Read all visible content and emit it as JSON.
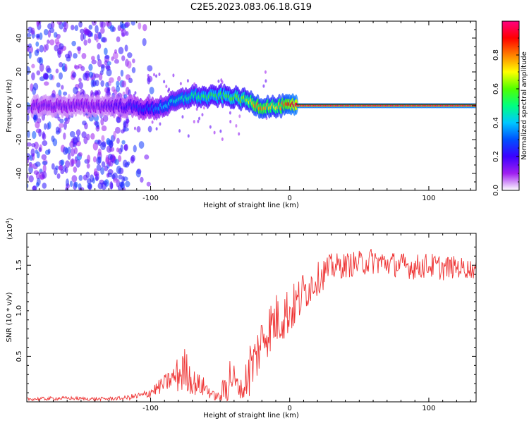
{
  "chart_data": [
    {
      "type": "heatmap",
      "title": "C2E5.2023.083.06.18.G19",
      "xlabel": "Height of straight line (km)",
      "ylabel": "Frequency (Hz)",
      "xlim": [
        -189,
        134
      ],
      "ylim": [
        -50,
        50
      ],
      "xticks": [
        -100,
        0,
        100
      ],
      "yticks": [
        -40,
        -20,
        0,
        20,
        40
      ],
      "colorbar": {
        "label": "Normalized spectral amplitude",
        "range": [
          0,
          1
        ],
        "ticks": [
          "0.0",
          "0.2",
          "0.4",
          "0.6",
          "0.8"
        ],
        "tick_values": [
          0.0,
          0.2,
          0.4,
          0.6,
          0.8
        ],
        "colors": [
          "#ffffff",
          "#a020f0",
          "#3c00ff",
          "#0050ff",
          "#00c8ff",
          "#00ff80",
          "#50ff00",
          "#ffff00",
          "#ff8000",
          "#ff0000",
          "#ff0080"
        ]
      },
      "ridge": {
        "x": [
          -185,
          -160,
          -140,
          -120,
          -100,
          -90,
          -80,
          -70,
          -60,
          -50,
          -40,
          -30,
          -25,
          -20,
          -15,
          -10,
          -5,
          0,
          5,
          134
        ],
        "freq": [
          0,
          0,
          0,
          0,
          -2,
          0,
          3,
          6,
          5,
          6,
          5,
          3,
          1,
          -1,
          0,
          -1,
          0,
          0,
          0,
          0
        ],
        "amplitude": [
          0.15,
          0.15,
          0.15,
          0.2,
          0.3,
          0.4,
          0.45,
          0.5,
          0.55,
          0.55,
          0.6,
          0.65,
          0.8,
          0.8,
          0.75,
          0.7,
          0.8,
          0.9,
          0.95,
          0.95
        ]
      },
      "scatter_noise_region_km": [
        -189,
        -115
      ],
      "scatter_noise_freq_range_hz": [
        -50,
        50
      ]
    },
    {
      "type": "line",
      "title": "",
      "xlabel": "Height of straight line (km)",
      "ylabel": "SNR (10 * v/v)",
      "y_multiplier": "(x10",
      "y_multiplier_exp": "4",
      "y_multiplier_close": ")",
      "xlim": [
        -189,
        134
      ],
      "ylim": [
        0,
        1.85
      ],
      "xticks": [
        -100,
        0,
        100
      ],
      "yticks": [
        0.5,
        1.0,
        1.5
      ],
      "ytick_labels": [
        "0.5",
        "1.0",
        "1.5"
      ],
      "series": [
        {
          "name": "SNR",
          "color": "#ee3333",
          "x": [
            -189,
            -160,
            -140,
            -120,
            -105,
            -95,
            -85,
            -78,
            -75,
            -70,
            -60,
            -55,
            -50,
            -45,
            -42,
            -38,
            -33,
            -30,
            -25,
            -22,
            -18,
            -15,
            -10,
            -5,
            0,
            5,
            10,
            15,
            20,
            25,
            30,
            40,
            50,
            60,
            70,
            80,
            90,
            100,
            110,
            120,
            134
          ],
          "y": [
            0.03,
            0.04,
            0.03,
            0.04,
            0.07,
            0.15,
            0.25,
            0.32,
            0.36,
            0.22,
            0.15,
            0.07,
            0.05,
            0.2,
            0.3,
            0.18,
            0.12,
            0.35,
            0.45,
            0.6,
            0.75,
            0.8,
            0.9,
            0.95,
            1.0,
            1.08,
            1.2,
            1.28,
            1.35,
            1.42,
            1.48,
            1.5,
            1.52,
            1.55,
            1.52,
            1.5,
            1.48,
            1.5,
            1.47,
            1.48,
            1.45
          ],
          "noise": [
            0.02,
            0.02,
            0.02,
            0.02,
            0.05,
            0.08,
            0.12,
            0.25,
            0.25,
            0.15,
            0.1,
            0.05,
            0.05,
            0.3,
            0.25,
            0.12,
            0.1,
            0.35,
            0.3,
            0.3,
            0.3,
            0.3,
            0.3,
            0.3,
            0.28,
            0.25,
            0.25,
            0.2,
            0.18,
            0.18,
            0.15,
            0.14,
            0.14,
            0.15,
            0.14,
            0.14,
            0.14,
            0.14,
            0.14,
            0.12,
            0.1
          ]
        }
      ]
    }
  ]
}
